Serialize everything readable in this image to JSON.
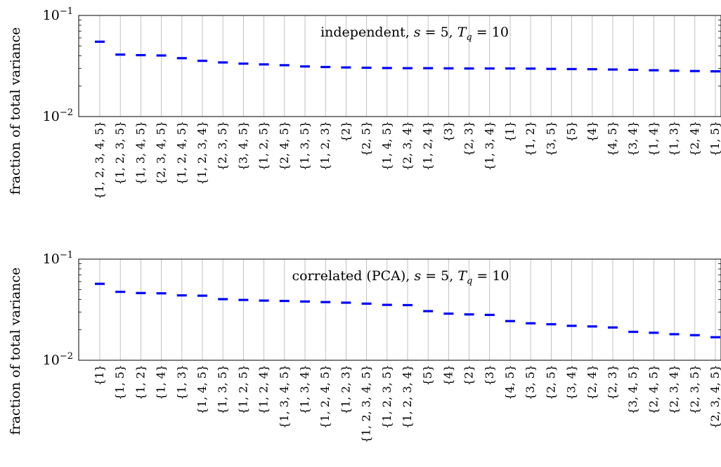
{
  "colors": {
    "bar": "#0000ff",
    "grid": "#b3b3b3",
    "axis": "#000000"
  },
  "chart_data": [
    {
      "type": "scatter",
      "title": "",
      "annotation": "independent, s = 5, T_q = 10",
      "ylabel": "fraction of total variance",
      "yscale": "log",
      "ylim": [
        0.01,
        0.1
      ],
      "yticklabels": [
        "10^{-1}",
        "10^{-2}"
      ],
      "grid": "vertical",
      "categories": [
        "{1, 2, 3, 4, 5}",
        "{1, 2, 3, 5}",
        "{1, 3, 4, 5}",
        "{2, 3, 4, 5}",
        "{1, 2, 4, 5}",
        "{1, 2, 3, 4}",
        "{2, 3, 5}",
        "{3, 4, 5}",
        "{1, 2, 5}",
        "{2, 4, 5}",
        "{1, 3, 5}",
        "{1, 2, 3}",
        "{2}",
        "{2, 5}",
        "{1, 4, 5}",
        "{2, 3, 4}",
        "{1, 2, 4}",
        "{3}",
        "{2, 3}",
        "{1, 3, 4}",
        "{1}",
        "{1, 2}",
        "{3, 5}",
        "{5}",
        "{4}",
        "{4, 5}",
        "{3, 4}",
        "{1, 4}",
        "{1, 3}",
        "{2, 4}",
        "{1, 5}"
      ],
      "values": [
        0.055,
        0.041,
        0.0405,
        0.0402,
        0.0378,
        0.0356,
        0.0343,
        0.0334,
        0.0328,
        0.0322,
        0.0313,
        0.0309,
        0.0306,
        0.0304,
        0.0302,
        0.0301,
        0.0301,
        0.03,
        0.0299,
        0.0299,
        0.0299,
        0.0298,
        0.0296,
        0.0295,
        0.0294,
        0.0292,
        0.029,
        0.0287,
        0.0284,
        0.0282,
        0.028
      ]
    },
    {
      "type": "scatter",
      "title": "",
      "annotation": "correlated (PCA), s = 5, T_q = 10",
      "ylabel": "fraction of total variance",
      "yscale": "log",
      "ylim": [
        0.01,
        0.1
      ],
      "yticklabels": [
        "10^{-1}",
        "10^{-2}"
      ],
      "grid": "vertical",
      "categories": [
        "{1}",
        "{1, 5}",
        "{1, 2}",
        "{1, 4}",
        "{1, 3}",
        "{1, 4, 5}",
        "{1, 3, 5}",
        "{1, 2, 5}",
        "{1, 2, 4}",
        "{1, 3, 4, 5}",
        "{1, 3, 4}",
        "{1, 2, 4, 5}",
        "{1, 2, 3}",
        "{1, 2, 3, 4, 5}",
        "{1, 2, 3, 5}",
        "{1, 2, 3, 4}",
        "{5}",
        "{4}",
        "{2}",
        "{3}",
        "{4, 5}",
        "{3, 5}",
        "{2, 5}",
        "{3, 4}",
        "{2, 4}",
        "{2, 3}",
        "{3, 4, 5}",
        "{2, 4, 5}",
        "{2, 3, 4}",
        "{2, 3, 5}",
        "{2, 3, 4, 5}"
      ],
      "values": [
        0.057,
        0.0475,
        0.0462,
        0.0459,
        0.0438,
        0.0435,
        0.0402,
        0.0395,
        0.0389,
        0.0386,
        0.0381,
        0.0376,
        0.0371,
        0.0363,
        0.0353,
        0.0351,
        0.0306,
        0.0289,
        0.0284,
        0.0281,
        0.0244,
        0.0232,
        0.0227,
        0.0219,
        0.0216,
        0.0211,
        0.0191,
        0.0187,
        0.0181,
        0.0177,
        0.0169
      ]
    }
  ]
}
